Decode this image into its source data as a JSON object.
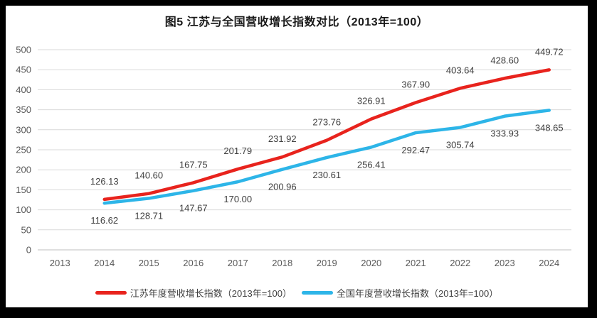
{
  "title": "图5  江苏与全国营收增长指数对比（2013年=100）",
  "colors": {
    "jiangsu_red": "#e8231d",
    "national_blue": "#2db5e8",
    "gridline": "#d9d9d9",
    "axis_line": "#bfbfbf",
    "tick_label": "#595959",
    "data_label": "#404040",
    "title_text": "#1a1a1a",
    "frame": "#000000",
    "chart_background": "#ffffff"
  },
  "chart_data": {
    "type": "line",
    "title": "图5  江苏与全国营收增长指数对比（2013年=100）",
    "categories": [
      "2013",
      "2014",
      "2015",
      "2016",
      "2017",
      "2018",
      "2019",
      "2020",
      "2021",
      "2022",
      "2023",
      "2024"
    ],
    "ylim": [
      0,
      500
    ],
    "yticks": [
      0,
      50,
      100,
      150,
      200,
      250,
      300,
      350,
      400,
      450,
      500
    ],
    "grid": true,
    "legend_position": "bottom",
    "series": [
      {
        "name": "江苏年度营收增长指数（2013年=100）",
        "color_key": "jiangsu_red",
        "start_category_index": 1,
        "values": [
          126.13,
          140.6,
          167.75,
          201.79,
          231.92,
          273.76,
          326.91,
          367.9,
          403.64,
          428.6,
          449.72
        ],
        "value_labels": [
          "126.13",
          "140.60",
          "167.75",
          "201.79",
          "231.92",
          "273.76",
          "326.91",
          "367.90",
          "403.64",
          "428.60",
          "449.72"
        ],
        "label_position": "above"
      },
      {
        "name": "全国年度营收增长指数（2013年=100）",
        "color_key": "national_blue",
        "start_category_index": 1,
        "values": [
          116.62,
          128.71,
          147.67,
          170.0,
          200.96,
          230.61,
          256.41,
          292.47,
          305.74,
          333.93,
          348.65
        ],
        "value_labels": [
          "116.62",
          "128.71",
          "147.67",
          "170.00",
          "200.96",
          "230.61",
          "256.41",
          "292.47",
          "305.74",
          "333.93",
          "348.65"
        ],
        "label_position": "below"
      }
    ]
  }
}
